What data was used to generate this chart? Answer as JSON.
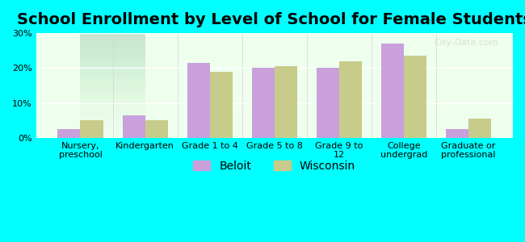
{
  "title": "School Enrollment by Level of School for Female Students",
  "categories": [
    "Nursery,\npreschool",
    "Kindergarten",
    "Grade 1 to 4",
    "Grade 5 to 8",
    "Grade 9 to\n12",
    "College\nundergrad",
    "Graduate or\nprofessional"
  ],
  "beloit": [
    2.5,
    6.5,
    21.5,
    20.0,
    20.0,
    27.0,
    2.5
  ],
  "wisconsin": [
    5.0,
    5.0,
    19.0,
    20.5,
    22.0,
    23.5,
    5.5
  ],
  "beloit_color": "#c9a0dc",
  "wisconsin_color": "#c8cc8a",
  "background_color": "#00FFFF",
  "plot_bg_top": "#f0fff0",
  "plot_bg_bottom": "#ffffff",
  "ylim": [
    0,
    30
  ],
  "yticks": [
    0,
    10,
    20,
    30
  ],
  "ytick_labels": [
    "0%",
    "10%",
    "20%",
    "30%"
  ],
  "bar_width": 0.35,
  "title_fontsize": 14,
  "tick_fontsize": 8,
  "legend_fontsize": 10,
  "watermark": "City-Data.com"
}
